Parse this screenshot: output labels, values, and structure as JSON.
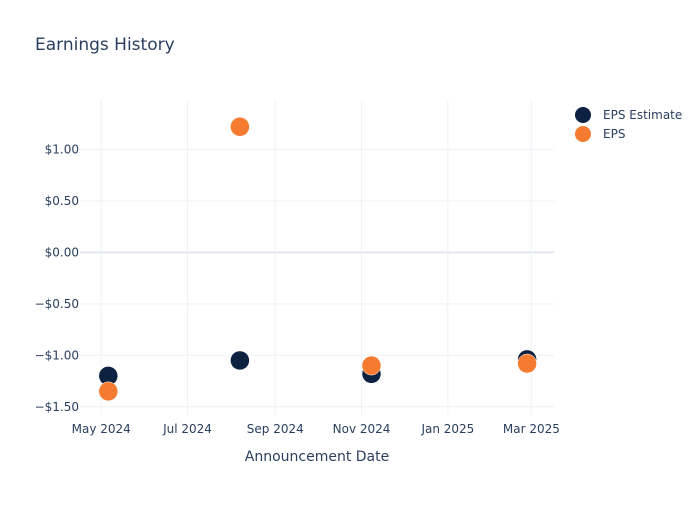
{
  "chart_data": {
    "type": "scatter",
    "title": "Earnings History",
    "xlabel": "Announcement Date",
    "ylabel": "",
    "x_ticks": [
      "2024-05-01",
      "2024-07-01",
      "2024-09-01",
      "2024-11-01",
      "2025-01-01",
      "2025-03-01"
    ],
    "x_tick_labels": [
      "May 2024",
      "Jul 2024",
      "Sep 2024",
      "Nov 2024",
      "Jan 2025",
      "Mar 2025"
    ],
    "y_ticks": [
      1.0,
      0.5,
      0.0,
      -0.5,
      -1.0,
      -1.5
    ],
    "y_tick_labels": [
      "$1.00",
      "$0.50",
      "$0.00",
      "−$0.50",
      "−$1.00",
      "−$1.50"
    ],
    "xlim": [
      "2024-04-16",
      "2025-03-17"
    ],
    "ylim": [
      -1.58,
      1.48
    ],
    "grid": true,
    "legend_position": "top-right",
    "series": [
      {
        "name": "EPS Estimate",
        "color": "#0d2240",
        "points": [
          {
            "x": "2024-05-06",
            "y": -1.2
          },
          {
            "x": "2024-08-07",
            "y": -1.05
          },
          {
            "x": "2024-11-08",
            "y": -1.18
          },
          {
            "x": "2025-02-26",
            "y": -1.04
          }
        ]
      },
      {
        "name": "EPS",
        "color": "#f47b30",
        "points": [
          {
            "x": "2024-05-06",
            "y": -1.35
          },
          {
            "x": "2024-08-07",
            "y": 1.22
          },
          {
            "x": "2024-11-08",
            "y": -1.1
          },
          {
            "x": "2025-02-26",
            "y": -1.08
          }
        ]
      }
    ]
  }
}
